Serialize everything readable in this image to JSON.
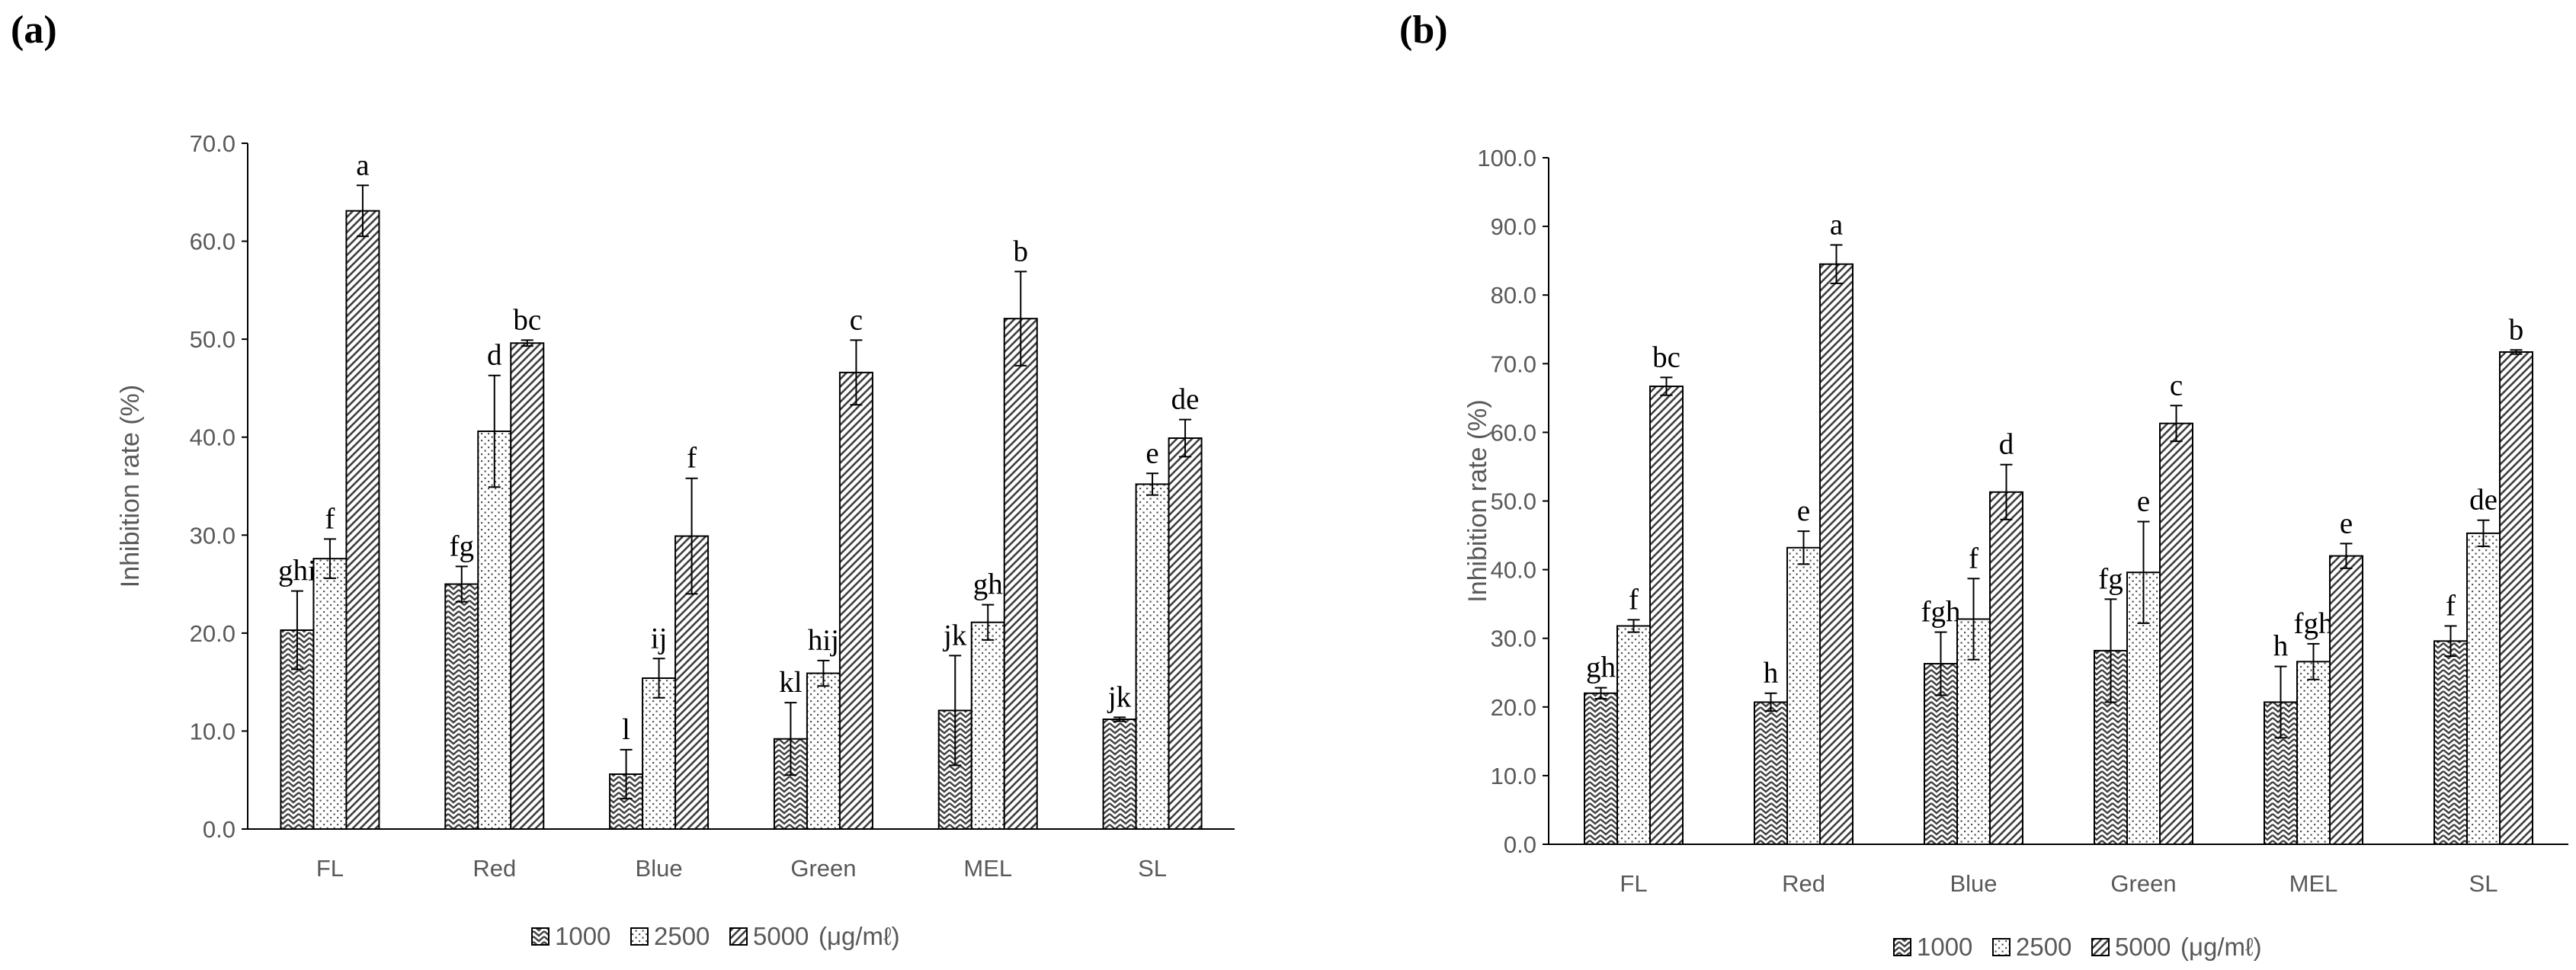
{
  "panels": [
    {
      "label": "(a)",
      "chart_data": {
        "type": "bar",
        "categories": [
          "FL",
          "Red",
          "Blue",
          "Green",
          "MEL",
          "SL"
        ],
        "ylabel": "Inhibition rate (%)",
        "ylim": [
          0,
          70
        ],
        "ytick_step": 10,
        "yticks": [
          "0.0",
          "10.0",
          "20.0",
          "30.0",
          "40.0",
          "50.0",
          "60.0",
          "70.0"
        ],
        "legend_suffix": "(μg/mℓ)",
        "series": [
          {
            "name": "1000",
            "values": [
              20.3,
              25.0,
              5.6,
              9.2,
              12.1,
              11.2
            ],
            "errors": [
              4.0,
              1.8,
              2.5,
              3.7,
              5.6,
              0.2
            ],
            "letters": [
              "ghi",
              "fg",
              "l",
              "kl",
              "jk",
              "jk"
            ]
          },
          {
            "name": "2500",
            "values": [
              27.6,
              40.6,
              15.4,
              15.9,
              21.1,
              35.2
            ],
            "errors": [
              2.0,
              5.7,
              2.0,
              1.3,
              1.8,
              1.1
            ],
            "letters": [
              "f",
              "d",
              "ij",
              "hij",
              "gh",
              "e"
            ]
          },
          {
            "name": "5000",
            "values": [
              63.1,
              49.6,
              29.9,
              46.6,
              52.1,
              39.9
            ],
            "errors": [
              2.6,
              0.3,
              5.9,
              3.3,
              4.8,
              1.9
            ],
            "letters": [
              "a",
              "bc",
              "f",
              "c",
              "b",
              "de"
            ]
          }
        ]
      }
    },
    {
      "label": "(b)",
      "chart_data": {
        "type": "bar",
        "categories": [
          "FL",
          "Red",
          "Blue",
          "Green",
          "MEL",
          "SL"
        ],
        "ylabel": "Inhibition rate (%)",
        "ylim": [
          0,
          100
        ],
        "ytick_step": 10,
        "yticks": [
          "0.0",
          "10.0",
          "20.0",
          "30.0",
          "40.0",
          "50.0",
          "60.0",
          "70.0",
          "80.0",
          "90.0",
          "100.0"
        ],
        "legend_suffix": "(μg/mℓ)",
        "series": [
          {
            "name": "1000",
            "values": [
              22.0,
              20.7,
              26.3,
              28.2,
              20.7,
              29.6
            ],
            "errors": [
              0.8,
              1.3,
              4.6,
              7.5,
              5.2,
              2.2
            ],
            "letters": [
              "gh",
              "h",
              "fgh",
              "fg",
              "h",
              "f"
            ]
          },
          {
            "name": "2500",
            "values": [
              31.8,
              43.2,
              32.8,
              39.6,
              26.6,
              45.3
            ],
            "errors": [
              0.9,
              2.4,
              5.9,
              7.4,
              2.6,
              1.9
            ],
            "letters": [
              "f",
              "e",
              "f",
              "e",
              "fgh",
              "de"
            ]
          },
          {
            "name": "5000",
            "values": [
              66.7,
              84.5,
              51.3,
              61.3,
              42.0,
              71.7
            ],
            "errors": [
              1.3,
              2.8,
              4.0,
              2.6,
              1.8,
              0.3
            ],
            "letters": [
              "bc",
              "a",
              "d",
              "c",
              "e",
              "b"
            ]
          }
        ]
      }
    }
  ]
}
